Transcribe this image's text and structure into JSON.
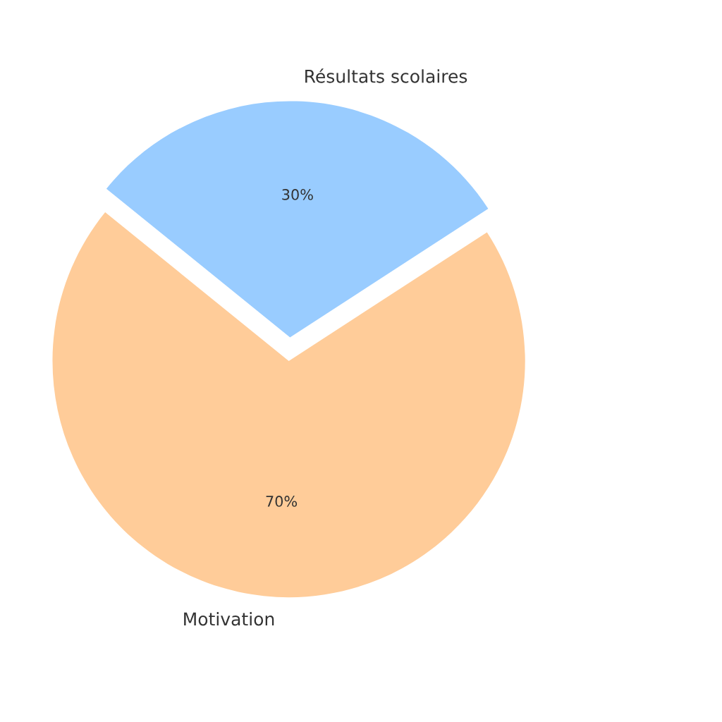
{
  "chart_data": {
    "type": "pie",
    "categories": [
      "Résultats scolaires",
      "Motivation"
    ],
    "values": [
      30,
      70
    ],
    "colors": [
      "#99ccff",
      "#ffcc99"
    ],
    "value_labels": [
      "30%",
      "70%"
    ]
  }
}
